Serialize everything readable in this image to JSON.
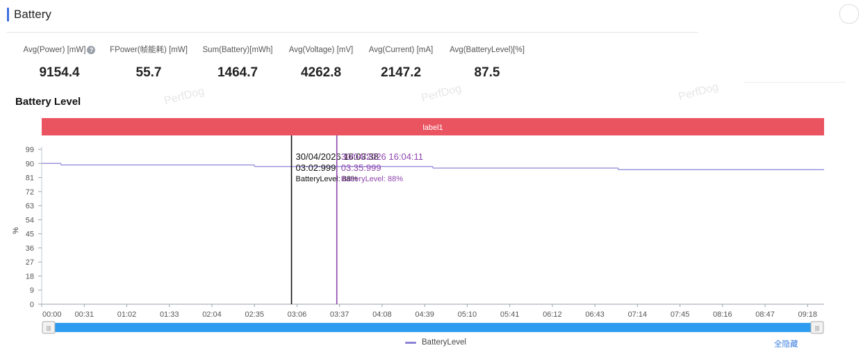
{
  "section": {
    "title": "Battery"
  },
  "stats": [
    {
      "label": "Avg(Power) [mW]",
      "value": "9154.4",
      "help": true
    },
    {
      "label": "FPower(帧能耗) [mW]",
      "value": "55.7"
    },
    {
      "label": "Sum(Battery)[mWh]",
      "value": "1464.7"
    },
    {
      "label": "Avg(Voltage) [mV]",
      "value": "4262.8"
    },
    {
      "label": "Avg(Current) [mA]",
      "value": "2147.2"
    },
    {
      "label": "Avg(BatteryLevel)[%]",
      "value": "87.5"
    }
  ],
  "help_glyph": "?",
  "watermark": "PerfDog",
  "chart_data": {
    "type": "line",
    "title": "Battery Level",
    "ylabel": "%",
    "xlabel": "",
    "ylim": [
      0,
      99
    ],
    "yticks": [
      "0",
      "9",
      "18",
      "27",
      "36",
      "45",
      "54",
      "63",
      "72",
      "81",
      "90",
      "99"
    ],
    "xlim_seconds": [
      0,
      570
    ],
    "xticks": [
      "00:00",
      "00:31",
      "01:02",
      "01:33",
      "02:04",
      "02:35",
      "03:06",
      "03:37",
      "04:08",
      "04:39",
      "05:10",
      "05:41",
      "06:12",
      "06:43",
      "07:14",
      "07:45",
      "08:16",
      "08:47",
      "09:18"
    ],
    "label_band": "label1",
    "series": [
      {
        "name": "BatteryLevel",
        "color": "#8a83d6",
        "steps": [
          {
            "from": "00:00",
            "to": "00:14",
            "value": 90
          },
          {
            "from": "00:14",
            "to": "02:35",
            "value": 89
          },
          {
            "from": "02:35",
            "to": "04:45",
            "value": 88
          },
          {
            "from": "04:45",
            "to": "07:00",
            "value": 87
          },
          {
            "from": "07:00",
            "to": "09:30",
            "value": 86
          }
        ]
      }
    ],
    "markers": [
      {
        "datetime": "30/04/2026 16:03:38",
        "elapsed": "03:02:999",
        "reading": "BatteryLevel: 88%",
        "color": "#111111"
      },
      {
        "datetime": "30/04/2026 16:04:11",
        "elapsed": "03:35:999",
        "reading": "BatteryLevel: 88%",
        "color": "#8e44ad"
      }
    ],
    "range_handle_glyph": "|||",
    "legend": {
      "position": "bottom-center",
      "hide_all_label": "全隐藏"
    }
  }
}
